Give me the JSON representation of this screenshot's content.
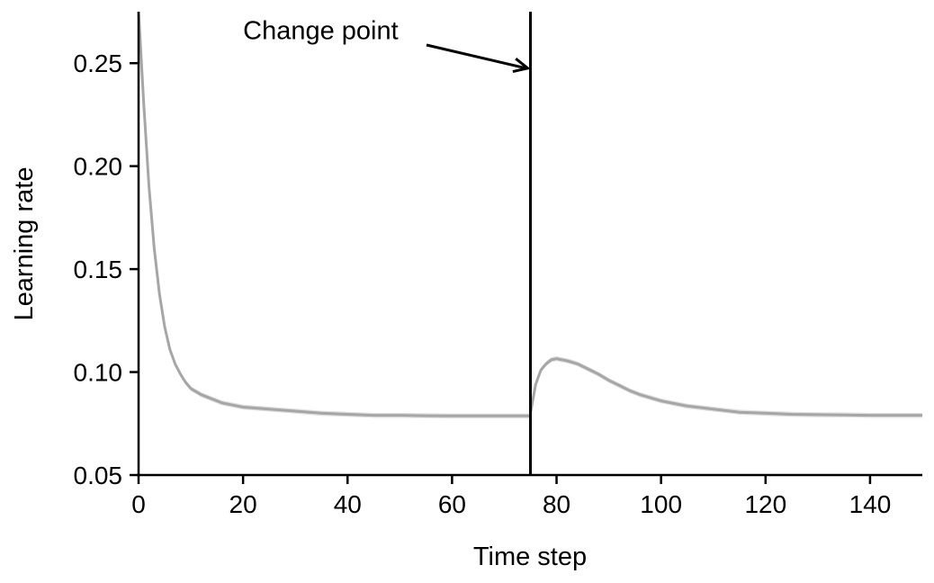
{
  "chart_data": {
    "type": "line",
    "title": "",
    "xlabel": "Time step",
    "ylabel": "Learning rate",
    "xlim": [
      0,
      150
    ],
    "ylim": [
      0.05,
      0.275
    ],
    "xticks": [
      0,
      20,
      40,
      60,
      80,
      100,
      120,
      140
    ],
    "xtick_labels": [
      "0",
      "20",
      "40",
      "60",
      "80",
      "100",
      "120",
      "140"
    ],
    "yticks": [
      0.05,
      0.1,
      0.15,
      0.2,
      0.25
    ],
    "ytick_labels": [
      "0.05",
      "0.10",
      "0.15",
      "0.20",
      "0.25"
    ],
    "grid": false,
    "series": [
      {
        "color": "#a6a6a6",
        "band_color": "#dcdcdc",
        "x": [
          0,
          1,
          2,
          3,
          4,
          5,
          6,
          7,
          8,
          9,
          10,
          12,
          14,
          16,
          18,
          20,
          25,
          30,
          35,
          40,
          45,
          50,
          55,
          60,
          65,
          70,
          75,
          75,
          76,
          77,
          78,
          79,
          80,
          82,
          84,
          86,
          88,
          90,
          92,
          94,
          96,
          98,
          100,
          105,
          110,
          115,
          120,
          125,
          130,
          135,
          140,
          145,
          150
        ],
        "y": [
          0.275,
          0.23,
          0.19,
          0.16,
          0.138,
          0.122,
          0.111,
          0.104,
          0.099,
          0.095,
          0.092,
          0.089,
          0.087,
          0.085,
          0.084,
          0.083,
          0.082,
          0.081,
          0.08,
          0.0795,
          0.079,
          0.079,
          0.0788,
          0.0787,
          0.0787,
          0.0787,
          0.0787,
          0.08,
          0.094,
          0.101,
          0.104,
          0.106,
          0.1065,
          0.1055,
          0.104,
          0.1015,
          0.099,
          0.096,
          0.0935,
          0.091,
          0.089,
          0.0875,
          0.086,
          0.0835,
          0.082,
          0.0805,
          0.08,
          0.0795,
          0.0793,
          0.0792,
          0.079,
          0.079,
          0.079
        ],
        "band": 0.0012
      }
    ],
    "vline": {
      "x": 75,
      "color": "#000000"
    },
    "annotation": {
      "text": "Change point",
      "point": [
        75,
        0.248
      ],
      "text_pos": [
        20,
        0.266
      ]
    }
  }
}
